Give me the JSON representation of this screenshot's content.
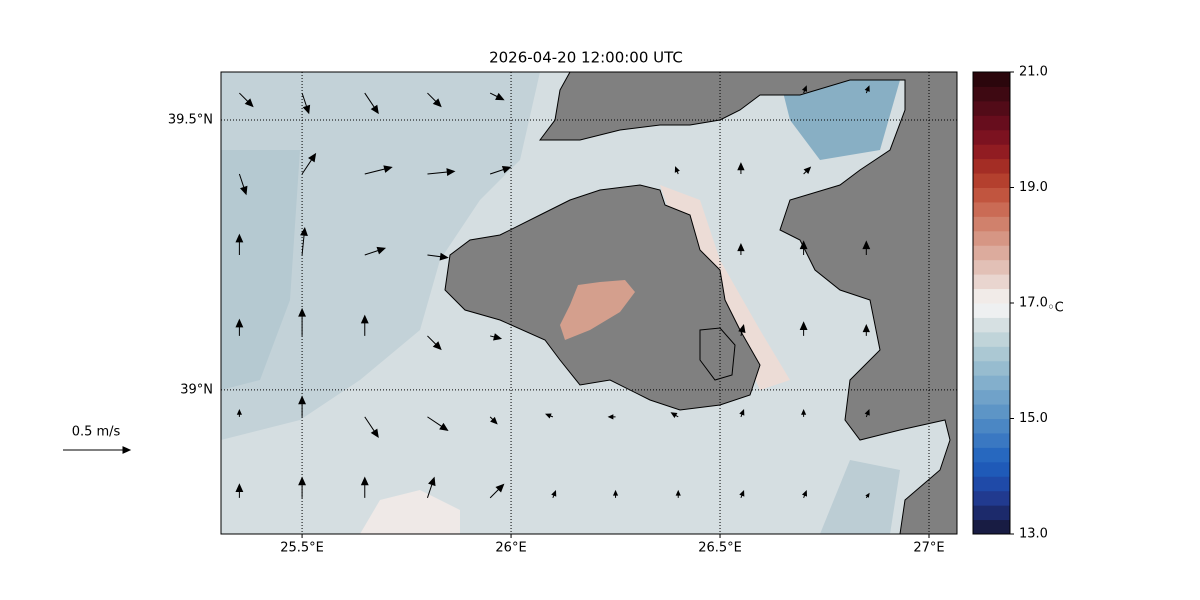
{
  "chart_data": {
    "type": "quiver",
    "title": "2026-04-20 12:00:00 UTC",
    "xlim": [
      25.306,
      27.067
    ],
    "ylim": [
      38.733,
      39.589
    ],
    "xticks": [
      {
        "value": 25.5,
        "label": "25.5°E"
      },
      {
        "value": 26,
        "label": "26°E"
      },
      {
        "value": 26.5,
        "label": "26.5°E"
      },
      {
        "value": 27,
        "label": "27°E"
      }
    ],
    "yticks": [
      {
        "value": 39,
        "label": "39°N"
      },
      {
        "value": 39.5,
        "label": "39.5°N"
      }
    ],
    "grid": true,
    "lons": [
      25.35,
      25.5,
      25.65,
      25.8,
      25.95,
      26.1,
      26.25,
      26.4,
      26.55,
      26.7,
      26.85,
      27.0
    ],
    "lats": [
      38.8,
      38.95,
      39.1,
      39.25,
      39.4,
      39.55
    ],
    "u": [
      [
        0,
        0,
        0,
        0.05,
        0.1,
        0.02,
        0,
        0,
        0.02,
        0.02,
        0.02,
        null
      ],
      [
        0,
        0,
        0.1,
        0.15,
        0.05,
        -0.05,
        -0.05,
        -0.05,
        0.02,
        0,
        0.02,
        null
      ],
      [
        0,
        0,
        0,
        0.1,
        0.08,
        null,
        null,
        null,
        0.02,
        0,
        0,
        null
      ],
      [
        0,
        0.02,
        0.15,
        0.15,
        null,
        null,
        null,
        null,
        0,
        0,
        0,
        null
      ],
      [
        0.05,
        0.1,
        0.2,
        0.2,
        0.15,
        null,
        null,
        -0.02,
        0,
        0.05,
        null,
        null
      ],
      [
        0.1,
        0.05,
        0.1,
        0.1,
        0.1,
        null,
        null,
        null,
        null,
        0.02,
        0.02,
        null
      ]
    ],
    "v": [
      [
        0.1,
        0.15,
        0.15,
        0.15,
        0.1,
        0.05,
        0.05,
        0.05,
        0.05,
        0.05,
        0.03,
        null
      ],
      [
        0.05,
        0.15,
        -0.15,
        -0.1,
        -0.05,
        0.02,
        0,
        0.03,
        0.05,
        0.05,
        0.05,
        null
      ],
      [
        0.12,
        0.2,
        0.15,
        -0.1,
        -0.02,
        null,
        null,
        null,
        0.08,
        0.1,
        0.08,
        null
      ],
      [
        0.15,
        0.2,
        0.05,
        -0.02,
        null,
        null,
        null,
        null,
        0.08,
        0.1,
        0.1,
        null
      ],
      [
        -0.15,
        0.15,
        0.05,
        0.02,
        0.05,
        null,
        null,
        0.05,
        0.08,
        0.05,
        null,
        null
      ],
      [
        -0.1,
        -0.15,
        -0.15,
        -0.1,
        -0.05,
        null,
        null,
        null,
        null,
        0.05,
        0.05,
        null
      ]
    ],
    "quiver_key": {
      "value": 0.5,
      "label": "0.5 m/s"
    },
    "colorbar": {
      "clim": [
        13,
        21
      ],
      "ticks": [
        {
          "value": 13,
          "label": "13.0"
        },
        {
          "value": 15,
          "label": "15.0"
        },
        {
          "value": 17,
          "label": "17.0"
        },
        {
          "value": 19,
          "label": "19.0"
        },
        {
          "value": 21,
          "label": "21.0"
        }
      ],
      "unit": "◦C",
      "colors": [
        "#181c43",
        "#1c2a6b",
        "#213a8f",
        "#1f4aa8",
        "#1f5ab8",
        "#2768bf",
        "#3a78c2",
        "#4b87c4",
        "#5d95c6",
        "#70a2c9",
        "#83afcc",
        "#97bccf",
        "#abc8d3",
        "#c0d4d9",
        "#d6e0e2",
        "#eef0f1",
        "#f1ebe8",
        "#e9d5cf",
        "#e2c0b6",
        "#dcab9d",
        "#d69684",
        "#d0816c",
        "#ca6b55",
        "#c1553f",
        "#b4402e",
        "#a42d25",
        "#911c22",
        "#7c1220",
        "#670d1d",
        "#520b18",
        "#3e0912",
        "#2b060c"
      ]
    }
  }
}
